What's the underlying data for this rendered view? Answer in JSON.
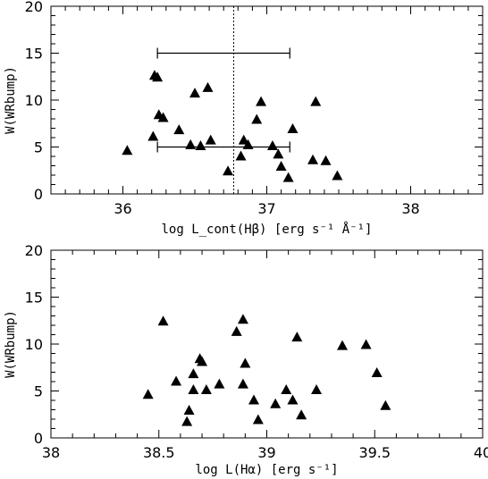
{
  "chart_data": [
    {
      "type": "scatter",
      "xlim": [
        35.5,
        38.5
      ],
      "ylim": [
        0,
        20
      ],
      "xticks": [
        36,
        37,
        38
      ],
      "yticks": [
        0,
        5,
        10,
        15,
        20
      ],
      "x_minor_step": 0.1,
      "y_minor_step": 1,
      "xlabel": "log L_cont(Hβ) [erg s⁻¹ Å⁻¹]",
      "ylabel": "W(WRbump)",
      "marker": "filled-triangle",
      "points": [
        {
          "x": 36.03,
          "y": 4.6
        },
        {
          "x": 36.21,
          "y": 6.1
        },
        {
          "x": 36.22,
          "y": 12.6
        },
        {
          "x": 36.24,
          "y": 12.4
        },
        {
          "x": 36.25,
          "y": 8.4
        },
        {
          "x": 36.28,
          "y": 8.1
        },
        {
          "x": 36.39,
          "y": 6.8
        },
        {
          "x": 36.47,
          "y": 5.2
        },
        {
          "x": 36.5,
          "y": 10.7
        },
        {
          "x": 36.54,
          "y": 5.1
        },
        {
          "x": 36.59,
          "y": 11.3
        },
        {
          "x": 36.61,
          "y": 5.7
        },
        {
          "x": 36.73,
          "y": 2.4
        },
        {
          "x": 36.82,
          "y": 4.0
        },
        {
          "x": 36.84,
          "y": 5.7
        },
        {
          "x": 36.87,
          "y": 5.2
        },
        {
          "x": 36.93,
          "y": 7.9
        },
        {
          "x": 36.96,
          "y": 9.8
        },
        {
          "x": 37.04,
          "y": 5.1
        },
        {
          "x": 37.08,
          "y": 4.2
        },
        {
          "x": 37.1,
          "y": 2.9
        },
        {
          "x": 37.15,
          "y": 1.7
        },
        {
          "x": 37.18,
          "y": 6.9
        },
        {
          "x": 37.32,
          "y": 3.6
        },
        {
          "x": 37.34,
          "y": 9.8
        },
        {
          "x": 37.41,
          "y": 3.5
        },
        {
          "x": 37.49,
          "y": 1.9
        }
      ],
      "reference_line_x": 36.77,
      "error_bars": [
        {
          "y": 15.0,
          "xmin": 36.24,
          "xmax": 37.16
        },
        {
          "y": 5.0,
          "xmin": 36.24,
          "xmax": 37.16
        }
      ]
    },
    {
      "type": "scatter",
      "xlim": [
        38,
        40
      ],
      "ylim": [
        0,
        20
      ],
      "xticks": [
        38,
        38.5,
        39,
        39.5,
        40
      ],
      "yticks": [
        0,
        5,
        10,
        15,
        20
      ],
      "x_minor_step": 0.1,
      "y_minor_step": 1,
      "xlabel": "log L(Hα) [erg s⁻¹]",
      "ylabel": "W(WRbump)",
      "marker": "filled-triangle",
      "points": [
        {
          "x": 38.45,
          "y": 4.6
        },
        {
          "x": 38.52,
          "y": 12.4
        },
        {
          "x": 38.58,
          "y": 6.0
        },
        {
          "x": 38.63,
          "y": 1.7
        },
        {
          "x": 38.64,
          "y": 2.9
        },
        {
          "x": 38.66,
          "y": 5.1
        },
        {
          "x": 38.66,
          "y": 6.8
        },
        {
          "x": 38.69,
          "y": 8.4
        },
        {
          "x": 38.7,
          "y": 8.1
        },
        {
          "x": 38.72,
          "y": 5.1
        },
        {
          "x": 38.78,
          "y": 5.7
        },
        {
          "x": 38.86,
          "y": 11.3
        },
        {
          "x": 38.89,
          "y": 12.6
        },
        {
          "x": 38.89,
          "y": 5.7
        },
        {
          "x": 38.9,
          "y": 7.9
        },
        {
          "x": 38.94,
          "y": 4.0
        },
        {
          "x": 38.96,
          "y": 1.9
        },
        {
          "x": 39.04,
          "y": 3.6
        },
        {
          "x": 39.09,
          "y": 5.1
        },
        {
          "x": 39.12,
          "y": 4.0
        },
        {
          "x": 39.14,
          "y": 10.7
        },
        {
          "x": 39.16,
          "y": 2.4
        },
        {
          "x": 39.23,
          "y": 5.1
        },
        {
          "x": 39.35,
          "y": 9.8
        },
        {
          "x": 39.46,
          "y": 9.9
        },
        {
          "x": 39.51,
          "y": 6.9
        },
        {
          "x": 39.55,
          "y": 3.4
        }
      ]
    }
  ]
}
